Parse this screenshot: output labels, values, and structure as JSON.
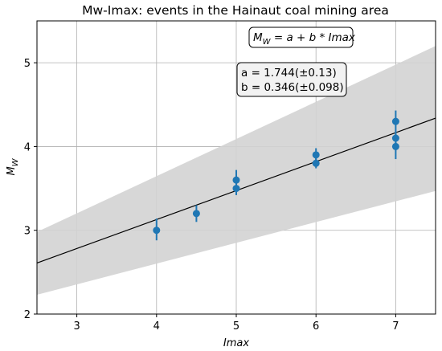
{
  "chart_data": {
    "type": "scatter",
    "title": "Mw-Imax: events in the Hainaut coal mining area",
    "xlabel": "Imax",
    "ylabel_main": "M",
    "ylabel_sub": "W",
    "xlim": [
      2.5,
      7.5
    ],
    "ylim": [
      2,
      5.5
    ],
    "xticks": [
      3,
      4,
      5,
      6,
      7
    ],
    "yticks": [
      2,
      3,
      4,
      5
    ],
    "grid": true,
    "points": [
      {
        "x": 4.0,
        "y": 3.0,
        "err_low": 0.12,
        "err_high": 0.14
      },
      {
        "x": 4.5,
        "y": 3.2,
        "err_low": 0.1,
        "err_high": 0.1
      },
      {
        "x": 5.0,
        "y": 3.5,
        "err_low": 0.08,
        "err_high": 0.08
      },
      {
        "x": 5.0,
        "y": 3.6,
        "err_low": 0.1,
        "err_high": 0.12
      },
      {
        "x": 6.0,
        "y": 3.8,
        "err_low": 0.06,
        "err_high": 0.06
      },
      {
        "x": 6.0,
        "y": 3.9,
        "err_low": 0.08,
        "err_high": 0.08
      },
      {
        "x": 7.0,
        "y": 4.0,
        "err_low": 0.15,
        "err_high": 0.15
      },
      {
        "x": 7.0,
        "y": 4.1,
        "err_low": 0.08,
        "err_high": 0.08
      },
      {
        "x": 7.0,
        "y": 4.3,
        "err_low": 0.13,
        "err_high": 0.13
      }
    ],
    "fit": {
      "a": 1.744,
      "b": 0.346,
      "sa": 0.13,
      "sb": 0.098
    },
    "band": {
      "x": [
        2.5,
        7.5
      ],
      "lower": [
        2.23,
        3.47
      ],
      "upper": [
        2.98,
        5.2
      ]
    },
    "annotations": {
      "equation": {
        "lhs_main": "M",
        "lhs_sub": "W",
        "rhs": " = a + b * ",
        "rhs_var": "Imax",
        "placement": "top-right"
      },
      "params": {
        "line_a": "a = 1.744(±0.13)",
        "line_b": "b = 0.346(±0.098)"
      }
    },
    "colors": {
      "points": "#1f77b4",
      "band": "#d3d3d3",
      "fit_line": "#000000",
      "grid": "#b0b0b0"
    }
  }
}
